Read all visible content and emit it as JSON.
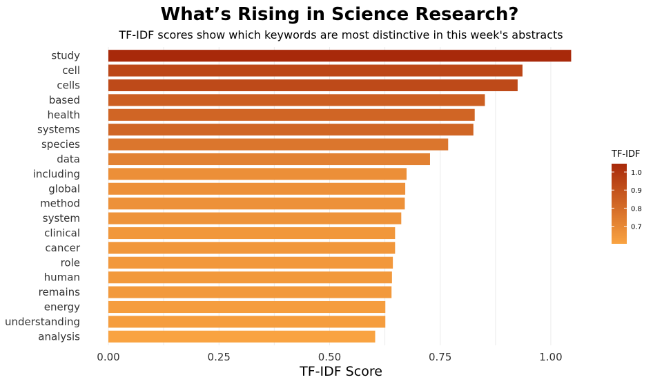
{
  "chart_data": {
    "type": "bar",
    "orientation": "horizontal",
    "title": "What’s Rising in Science Research?",
    "subtitle": "TF-IDF scores show which keywords are most distinctive in this week's abstracts",
    "xlabel": "TF-IDF Score",
    "ylabel": "",
    "xlim": [
      0,
      1.05
    ],
    "xticks": [
      0,
      0.25,
      0.5,
      0.75,
      1.0
    ],
    "xtick_labels": [
      "0.00",
      "0.25",
      "0.50",
      "0.75",
      "1.00"
    ],
    "categories": [
      "study",
      "cell",
      "cells",
      "based",
      "health",
      "systems",
      "species",
      "data",
      "including",
      "global",
      "method",
      "system",
      "clinical",
      "cancer",
      "role",
      "human",
      "remains",
      "energy",
      "understanding",
      "analysis"
    ],
    "values": [
      1.046,
      0.936,
      0.925,
      0.851,
      0.828,
      0.825,
      0.768,
      0.727,
      0.674,
      0.671,
      0.67,
      0.662,
      0.648,
      0.648,
      0.643,
      0.641,
      0.64,
      0.626,
      0.626,
      0.603
    ],
    "grid": true,
    "legend": {
      "title": "TF-IDF",
      "placement": "right",
      "ticks": [
        0.7,
        0.8,
        0.9,
        1.0
      ],
      "tick_labels": [
        "0.7",
        "0.8",
        "0.9",
        "1.0"
      ],
      "range": [
        0.603,
        1.046
      ]
    },
    "colors": {
      "low": "#f9a341",
      "high": "#a8290a"
    }
  }
}
